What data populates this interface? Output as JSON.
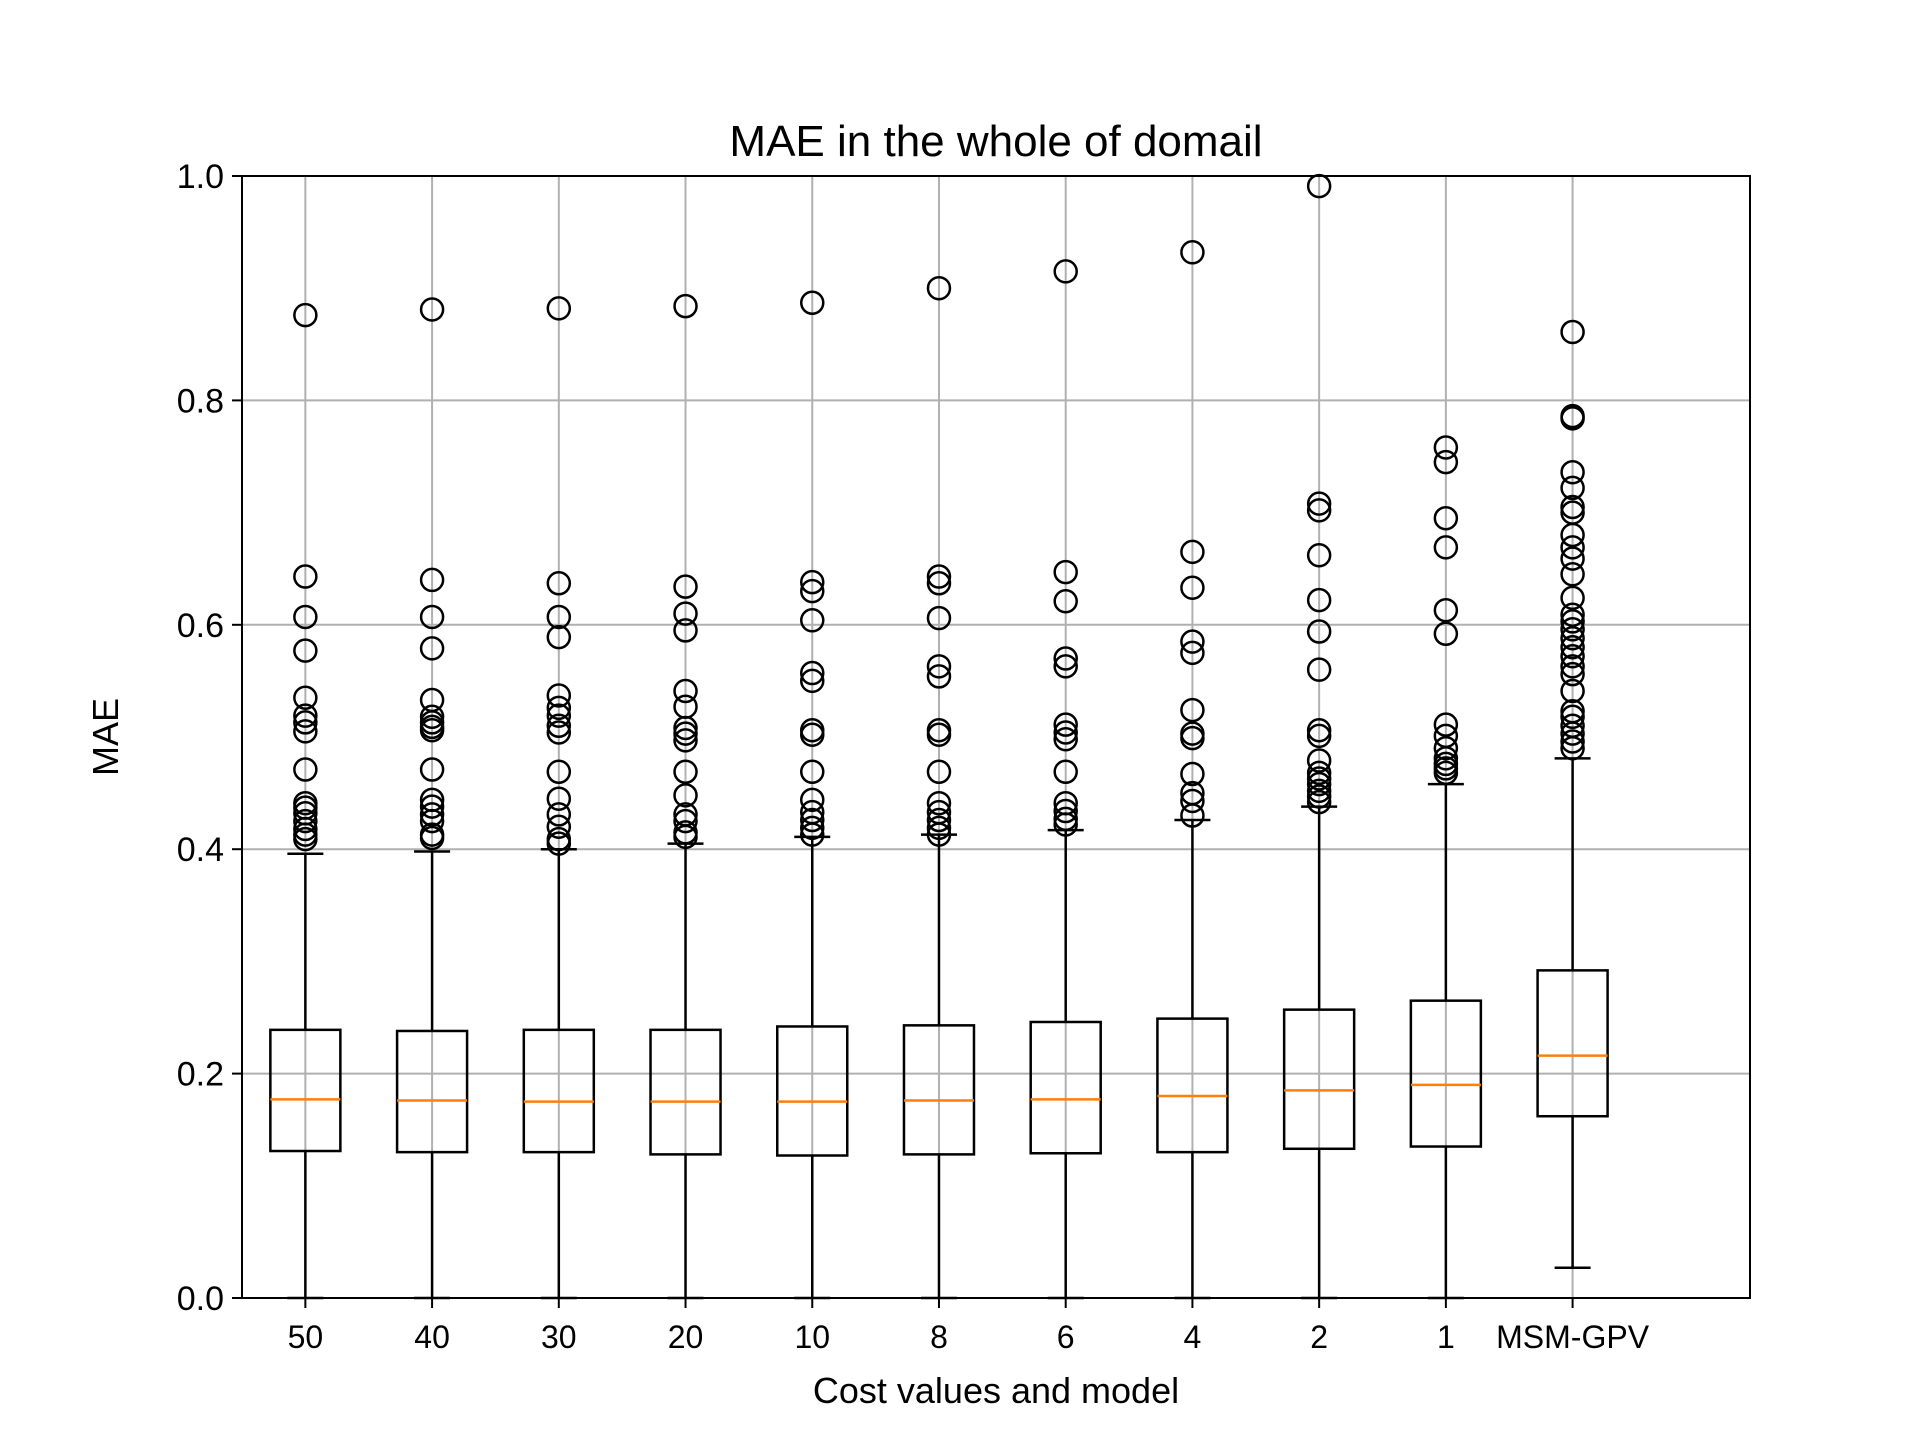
{
  "chart_data": {
    "type": "box",
    "title": "MAE in the whole of domail",
    "xlabel": "Cost values and model",
    "ylabel": "MAE",
    "ylim": [
      0.0,
      1.0
    ],
    "yticks": [
      "0.0",
      "0.2",
      "0.4",
      "0.6",
      "0.8",
      "1.0"
    ],
    "grid": true,
    "colors": {
      "box": "#000000",
      "median": "#ff7f0e",
      "grid": "#b0b0b0"
    },
    "categories": [
      "50",
      "40",
      "30",
      "20",
      "10",
      "8",
      "6",
      "4",
      "2",
      "1",
      "MSM-GPV"
    ],
    "boxes": [
      {
        "label": "50",
        "whisker_low": 0.0,
        "q1": 0.131,
        "median": 0.177,
        "q3": 0.239,
        "whisker_high": 0.396,
        "outliers": [
          0.409,
          0.413,
          0.418,
          0.425,
          0.432,
          0.437,
          0.441,
          0.471,
          0.505,
          0.513,
          0.519,
          0.535,
          0.577,
          0.607,
          0.643,
          0.876
        ]
      },
      {
        "label": "40",
        "whisker_low": 0.0,
        "q1": 0.13,
        "median": 0.176,
        "q3": 0.238,
        "whisker_high": 0.398,
        "outliers": [
          0.41,
          0.413,
          0.425,
          0.431,
          0.438,
          0.444,
          0.471,
          0.506,
          0.509,
          0.513,
          0.518,
          0.533,
          0.579,
          0.607,
          0.64,
          0.881
        ]
      },
      {
        "label": "30",
        "whisker_low": 0.0,
        "q1": 0.13,
        "median": 0.175,
        "q3": 0.239,
        "whisker_high": 0.4,
        "outliers": [
          0.405,
          0.409,
          0.42,
          0.431,
          0.445,
          0.469,
          0.504,
          0.51,
          0.519,
          0.526,
          0.537,
          0.589,
          0.607,
          0.637,
          0.882
        ]
      },
      {
        "label": "20",
        "whisker_low": 0.0,
        "q1": 0.128,
        "median": 0.175,
        "q3": 0.239,
        "whisker_high": 0.405,
        "outliers": [
          0.411,
          0.415,
          0.425,
          0.431,
          0.448,
          0.469,
          0.497,
          0.503,
          0.508,
          0.527,
          0.541,
          0.595,
          0.61,
          0.634,
          0.884
        ]
      },
      {
        "label": "10",
        "whisker_low": 0.0,
        "q1": 0.127,
        "median": 0.175,
        "q3": 0.242,
        "whisker_high": 0.411,
        "outliers": [
          0.413,
          0.419,
          0.426,
          0.433,
          0.444,
          0.469,
          0.502,
          0.506,
          0.55,
          0.557,
          0.604,
          0.63,
          0.638,
          0.887
        ]
      },
      {
        "label": "8",
        "whisker_low": 0.0,
        "q1": 0.128,
        "median": 0.176,
        "q3": 0.243,
        "whisker_high": 0.413,
        "outliers": [
          0.413,
          0.419,
          0.426,
          0.433,
          0.441,
          0.469,
          0.502,
          0.506,
          0.554,
          0.563,
          0.606,
          0.637,
          0.643,
          0.9
        ]
      },
      {
        "label": "6",
        "whisker_low": 0.0,
        "q1": 0.129,
        "median": 0.177,
        "q3": 0.246,
        "whisker_high": 0.417,
        "outliers": [
          0.422,
          0.427,
          0.434,
          0.441,
          0.469,
          0.498,
          0.504,
          0.511,
          0.563,
          0.57,
          0.621,
          0.647,
          0.915
        ]
      },
      {
        "label": "4",
        "whisker_low": 0.0,
        "q1": 0.13,
        "median": 0.18,
        "q3": 0.249,
        "whisker_high": 0.426,
        "outliers": [
          0.43,
          0.443,
          0.45,
          0.467,
          0.499,
          0.503,
          0.524,
          0.575,
          0.585,
          0.633,
          0.665,
          0.932
        ]
      },
      {
        "label": "2",
        "whisker_low": 0.0,
        "q1": 0.133,
        "median": 0.185,
        "q3": 0.257,
        "whisker_high": 0.438,
        "outliers": [
          0.442,
          0.447,
          0.452,
          0.458,
          0.463,
          0.468,
          0.479,
          0.501,
          0.506,
          0.56,
          0.594,
          0.622,
          0.662,
          0.702,
          0.708,
          0.991
        ]
      },
      {
        "label": "1",
        "whisker_low": 0.0,
        "q1": 0.135,
        "median": 0.19,
        "q3": 0.265,
        "whisker_high": 0.458,
        "outliers": [
          0.468,
          0.472,
          0.476,
          0.481,
          0.49,
          0.501,
          0.511,
          0.592,
          0.613,
          0.669,
          0.695,
          0.745,
          0.758
        ]
      },
      {
        "label": "MSM-GPV",
        "whisker_low": 0.027,
        "q1": 0.162,
        "median": 0.216,
        "q3": 0.292,
        "whisker_high": 0.481,
        "outliers": [
          0.49,
          0.496,
          0.503,
          0.51,
          0.518,
          0.523,
          0.541,
          0.556,
          0.563,
          0.572,
          0.58,
          0.588,
          0.596,
          0.603,
          0.609,
          0.624,
          0.645,
          0.659,
          0.669,
          0.68,
          0.7,
          0.705,
          0.722,
          0.736,
          0.784,
          0.786,
          0.861
        ]
      }
    ]
  }
}
